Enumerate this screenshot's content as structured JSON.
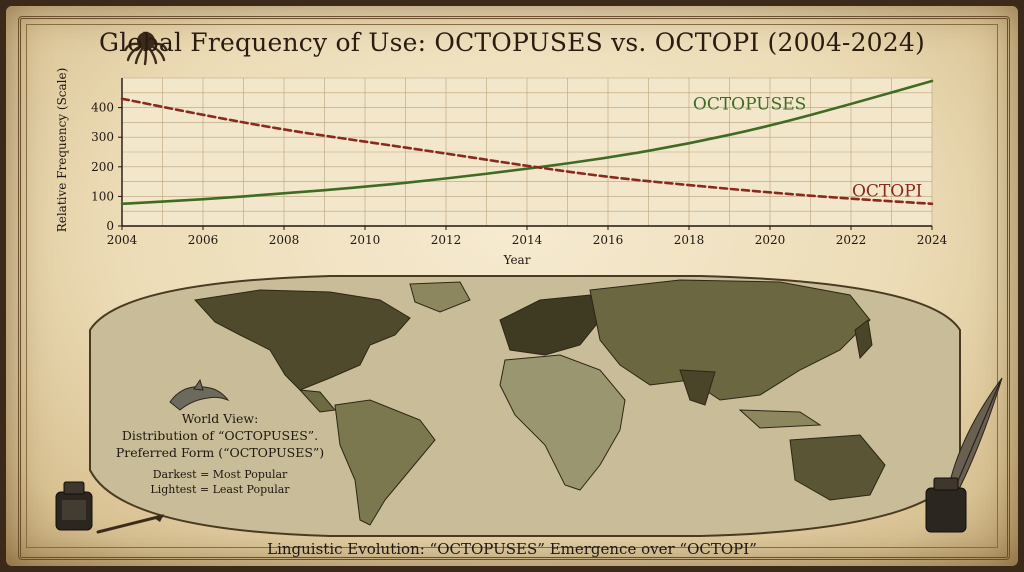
{
  "title": "Global Frequency of Use: OCTOPUSES vs. OCTOPI (2004-2024)",
  "icons": {
    "title_icon": "octopus-icon",
    "dolphin": "dolphin-icon",
    "inkwell": "inkwell-icon",
    "quill": "quill-icon"
  },
  "colors": {
    "octopuses": "#3f6b22",
    "octopi": "#8a2a1e",
    "ink": "#1f1710"
  },
  "chart_data": {
    "type": "line",
    "title": "Global Frequency of Use: OCTOPUSES vs. OCTOPI (2004-2024)",
    "xlabel": "Year",
    "ylabel": "Relative Frequency (Scale)",
    "xlim": [
      2004,
      2024
    ],
    "ylim": [
      0,
      500
    ],
    "xticks": [
      2004,
      2006,
      2008,
      2010,
      2012,
      2014,
      2016,
      2018,
      2020,
      2022,
      2024
    ],
    "yticks": [
      0,
      100,
      200,
      300,
      400
    ],
    "grid": true,
    "series": [
      {
        "name": "OCTOPUSES",
        "style": "solid",
        "x": [
          2004,
          2006,
          2008,
          2010,
          2012,
          2014,
          2016,
          2018,
          2020,
          2022,
          2024
        ],
        "y": [
          75,
          90,
          110,
          132,
          160,
          193,
          230,
          278,
          338,
          412,
          490
        ]
      },
      {
        "name": "OCTOPI",
        "style": "dashed",
        "x": [
          2004,
          2006,
          2008,
          2010,
          2012,
          2014,
          2016,
          2018,
          2020,
          2022,
          2024
        ],
        "y": [
          430,
          375,
          325,
          285,
          245,
          203,
          165,
          138,
          113,
          92,
          75
        ]
      }
    ]
  },
  "map": {
    "legend_title_lines": [
      "World View:",
      "Distribution of “OCTOPUSES”.",
      "Preferred Form (“OCTOPUSES”)"
    ],
    "legend_key_lines": [
      "Darkest = Most Popular",
      "Lightest = Least Popular"
    ]
  },
  "footer": "Linguistic Evolution: “OCTOPUSES” Emergence over “OCTOPI”"
}
